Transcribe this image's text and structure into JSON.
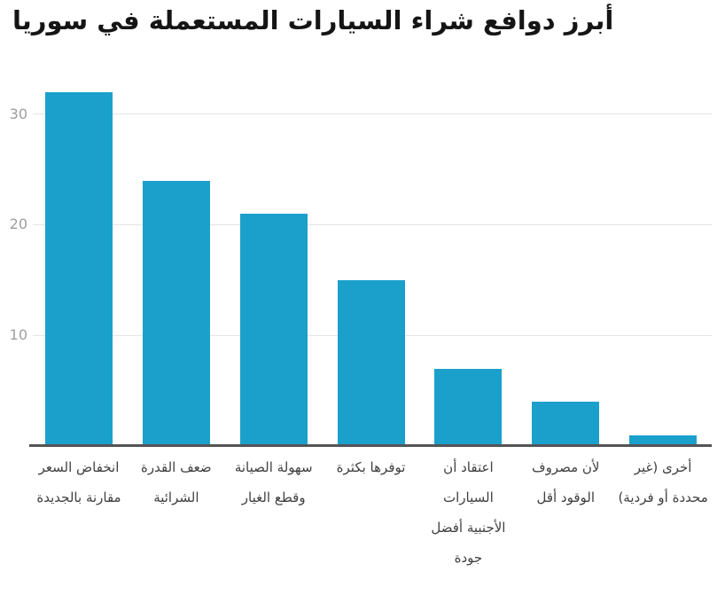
{
  "chart_data": {
    "type": "bar",
    "title": "أبرز دوافع شراء السيارات المستعملة في سوريا",
    "categories": [
      "انخفاض السعر مقارنة بالجديدة",
      "ضعف القدرة الشرائية",
      "سهولة الصيانة وقطع الغيار",
      "توفرها بكثرة",
      "اعتقاد أن السيارات الأجنبية أفضل جودة",
      "لأن مصروف الوقود أقل",
      "أخرى (غير محددة أو فردية)"
    ],
    "category_lines": [
      [
        "انخفاض السعر",
        "مقارنة بالجديدة"
      ],
      [
        "ضعف القدرة",
        "الشرائية"
      ],
      [
        "سهولة الصيانة",
        "وقطع الغيار"
      ],
      [
        "توفرها بكثرة"
      ],
      [
        "اعتقاد أن",
        "السيارات",
        "الأجنبية أفضل",
        "جودة"
      ],
      [
        "لأن مصروف",
        "الوقود أقل"
      ],
      [
        "أخرى (غير",
        "محددة أو فردية)"
      ]
    ],
    "values": [
      32,
      24,
      21,
      15,
      7,
      4,
      1
    ],
    "yticks": [
      10,
      20,
      30
    ],
    "ylim": [
      0,
      33.1
    ],
    "xlabel": "",
    "ylabel": "",
    "grid": true,
    "legend_position": "none",
    "text_direction": "rtl",
    "colors": {
      "bar": "#1BA0CB",
      "grid": "#e4e4e4",
      "axis": "#545454",
      "ytick_text": "#9e9e9e",
      "xtick_text": "#404040",
      "title_text": "#151515",
      "background": "#ffffff"
    }
  }
}
